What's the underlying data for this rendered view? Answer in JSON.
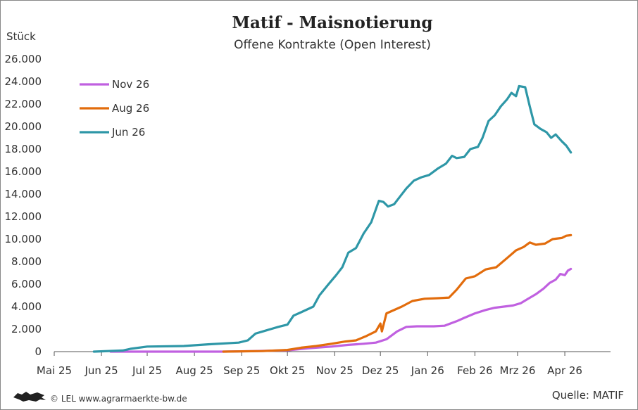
{
  "chart_data": {
    "type": "line",
    "title": "Matif - Maisnotierung",
    "subtitle": "Offene Kontrakte (Open Interest)",
    "ylabel": "Stück",
    "ylim": [
      0,
      26000
    ],
    "yticks": [
      0,
      2000,
      4000,
      6000,
      8000,
      10000,
      12000,
      14000,
      16000,
      18000,
      20000,
      22000,
      24000,
      26000
    ],
    "ytick_labels": [
      "0",
      "2.000",
      "4.000",
      "6.000",
      "8.000",
      "10.000",
      "12.000",
      "14.000",
      "16.000",
      "18.000",
      "20.000",
      "22.000",
      "24.000",
      "26.000"
    ],
    "xlim": [
      "2025-05-01",
      "2026-05-01"
    ],
    "xticks": [
      "2025-05-01",
      "2025-06-01",
      "2025-07-01",
      "2025-08-01",
      "2025-09-01",
      "2025-10-01",
      "2025-11-01",
      "2025-12-01",
      "2026-01-01",
      "2026-02-01",
      "2026-03-01",
      "2026-04-01"
    ],
    "xtick_labels": [
      "Mai 25",
      "Jun 25",
      "Jul 25",
      "Aug 25",
      "Sep 25",
      "Okt 25",
      "Nov 25",
      "Dez 25",
      "Jan 26",
      "Feb 26",
      "Mrz 26",
      "Apr 26"
    ],
    "grid": false,
    "legend_position": "top-left",
    "series": [
      {
        "name": "Nov 26",
        "color": "#c060e0",
        "points": [
          [
            "2025-06-07",
            0
          ],
          [
            "2025-08-20",
            0
          ],
          [
            "2025-09-10",
            50
          ],
          [
            "2025-10-01",
            120
          ],
          [
            "2025-10-15",
            300
          ],
          [
            "2025-10-30",
            450
          ],
          [
            "2025-11-10",
            600
          ],
          [
            "2025-11-20",
            700
          ],
          [
            "2025-11-28",
            800
          ],
          [
            "2025-12-05",
            1100
          ],
          [
            "2025-12-12",
            1800
          ],
          [
            "2025-12-18",
            2200
          ],
          [
            "2025-12-25",
            2250
          ],
          [
            "2026-01-05",
            2250
          ],
          [
            "2026-01-12",
            2300
          ],
          [
            "2026-01-20",
            2700
          ],
          [
            "2026-01-25",
            3000
          ],
          [
            "2026-02-01",
            3400
          ],
          [
            "2026-02-08",
            3700
          ],
          [
            "2026-02-14",
            3900
          ],
          [
            "2026-02-20",
            4000
          ],
          [
            "2026-02-26",
            4100
          ],
          [
            "2026-03-03",
            4300
          ],
          [
            "2026-03-08",
            4700
          ],
          [
            "2026-03-13",
            5100
          ],
          [
            "2026-03-18",
            5600
          ],
          [
            "2026-03-22",
            6100
          ],
          [
            "2026-03-26",
            6400
          ],
          [
            "2026-03-29",
            6900
          ],
          [
            "2026-04-01",
            6800
          ],
          [
            "2026-04-03",
            7200
          ],
          [
            "2026-04-05",
            7350
          ]
        ]
      },
      {
        "name": "Aug 26",
        "color": "#e26c0c",
        "points": [
          [
            "2025-08-20",
            0
          ],
          [
            "2025-09-15",
            50
          ],
          [
            "2025-10-01",
            150
          ],
          [
            "2025-10-10",
            350
          ],
          [
            "2025-10-20",
            500
          ],
          [
            "2025-10-30",
            700
          ],
          [
            "2025-11-08",
            900
          ],
          [
            "2025-11-15",
            1000
          ],
          [
            "2025-11-22",
            1400
          ],
          [
            "2025-11-28",
            1800
          ],
          [
            "2025-12-01",
            2500
          ],
          [
            "2025-12-02",
            1800
          ],
          [
            "2025-12-05",
            3400
          ],
          [
            "2025-12-15",
            4000
          ],
          [
            "2025-12-22",
            4500
          ],
          [
            "2025-12-30",
            4700
          ],
          [
            "2026-01-08",
            4750
          ],
          [
            "2026-01-15",
            4800
          ],
          [
            "2026-01-20",
            5500
          ],
          [
            "2026-01-26",
            6500
          ],
          [
            "2026-02-01",
            6700
          ],
          [
            "2026-02-08",
            7300
          ],
          [
            "2026-02-15",
            7500
          ],
          [
            "2026-02-22",
            8300
          ],
          [
            "2026-02-28",
            9000
          ],
          [
            "2026-03-05",
            9300
          ],
          [
            "2026-03-09",
            9700
          ],
          [
            "2026-03-13",
            9500
          ],
          [
            "2026-03-19",
            9600
          ],
          [
            "2026-03-24",
            10000
          ],
          [
            "2026-03-30",
            10100
          ],
          [
            "2026-04-02",
            10300
          ],
          [
            "2026-04-05",
            10350
          ]
        ]
      },
      {
        "name": "Jun 26",
        "color": "#2e97a7",
        "points": [
          [
            "2025-05-27",
            0
          ],
          [
            "2025-06-15",
            100
          ],
          [
            "2025-06-20",
            250
          ],
          [
            "2025-07-01",
            450
          ],
          [
            "2025-07-25",
            500
          ],
          [
            "2025-08-10",
            650
          ],
          [
            "2025-08-30",
            800
          ],
          [
            "2025-09-05",
            1000
          ],
          [
            "2025-09-10",
            1600
          ],
          [
            "2025-09-15",
            1800
          ],
          [
            "2025-09-20",
            2000
          ],
          [
            "2025-09-25",
            2200
          ],
          [
            "2025-10-01",
            2400
          ],
          [
            "2025-10-05",
            3200
          ],
          [
            "2025-10-10",
            3500
          ],
          [
            "2025-10-18",
            4000
          ],
          [
            "2025-10-22",
            5000
          ],
          [
            "2025-10-28",
            6000
          ],
          [
            "2025-11-02",
            6800
          ],
          [
            "2025-11-06",
            7500
          ],
          [
            "2025-11-10",
            8800
          ],
          [
            "2025-11-15",
            9200
          ],
          [
            "2025-11-20",
            10500
          ],
          [
            "2025-11-25",
            11500
          ],
          [
            "2025-11-30",
            13400
          ],
          [
            "2025-12-03",
            13300
          ],
          [
            "2025-12-06",
            12900
          ],
          [
            "2025-12-10",
            13100
          ],
          [
            "2025-12-14",
            13800
          ],
          [
            "2025-12-18",
            14500
          ],
          [
            "2025-12-23",
            15200
          ],
          [
            "2025-12-28",
            15500
          ],
          [
            "2026-01-02",
            15700
          ],
          [
            "2026-01-08",
            16300
          ],
          [
            "2026-01-13",
            16700
          ],
          [
            "2026-01-17",
            17400
          ],
          [
            "2026-01-20",
            17200
          ],
          [
            "2026-01-25",
            17300
          ],
          [
            "2026-01-29",
            18000
          ],
          [
            "2026-02-03",
            18200
          ],
          [
            "2026-02-06",
            19000
          ],
          [
            "2026-02-10",
            20500
          ],
          [
            "2026-02-14",
            21000
          ],
          [
            "2026-02-18",
            21800
          ],
          [
            "2026-02-22",
            22400
          ],
          [
            "2026-02-25",
            23000
          ],
          [
            "2026-02-28",
            22700
          ],
          [
            "2026-03-02",
            23600
          ],
          [
            "2026-03-06",
            23500
          ],
          [
            "2026-03-09",
            21800
          ],
          [
            "2026-03-12",
            20200
          ],
          [
            "2026-03-16",
            19800
          ],
          [
            "2026-03-20",
            19500
          ],
          [
            "2026-03-23",
            19000
          ],
          [
            "2026-03-26",
            19300
          ],
          [
            "2026-03-30",
            18700
          ],
          [
            "2026-04-02",
            18300
          ],
          [
            "2026-04-05",
            17700
          ]
        ]
      }
    ]
  },
  "footer": {
    "credit": "© LEL www.agrarmaerkte-bw.de",
    "source": "Quelle: MATIF"
  }
}
